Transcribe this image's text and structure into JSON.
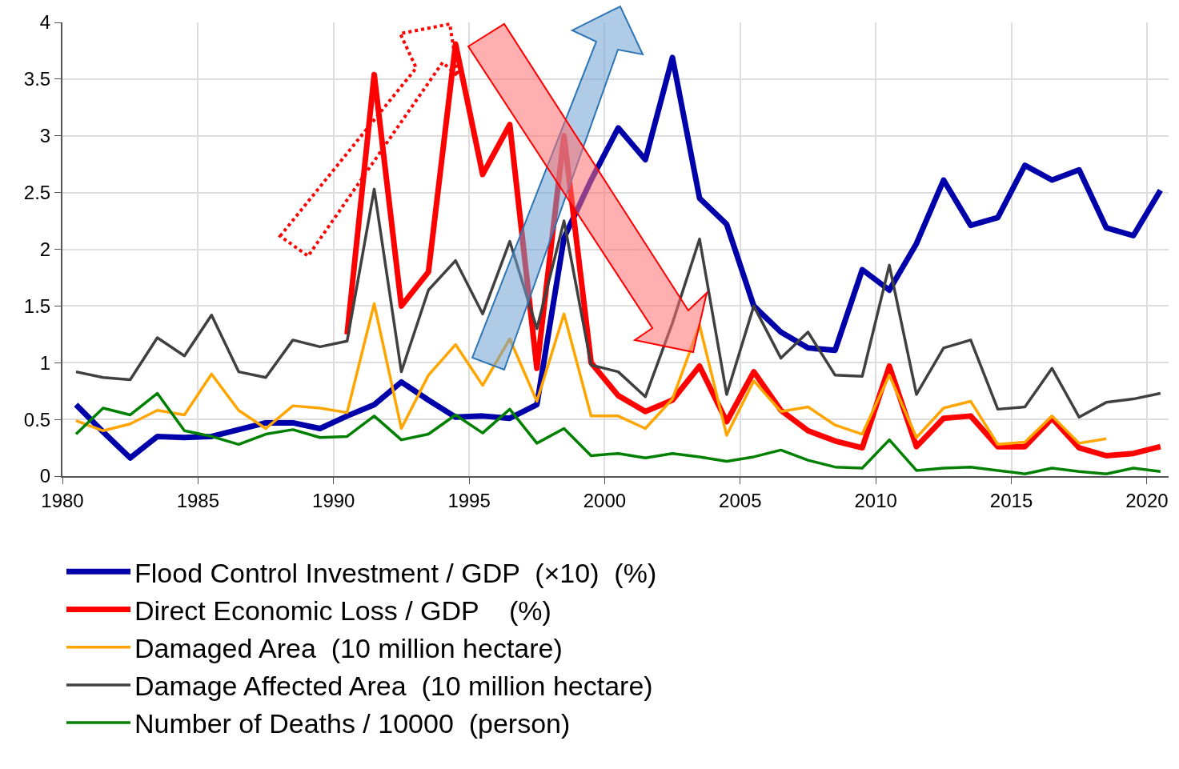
{
  "chart_data": {
    "type": "line",
    "x": [
      1980.5,
      1981.5,
      1982.5,
      1983.5,
      1984.5,
      1985.5,
      1986.5,
      1987.5,
      1988.5,
      1989.5,
      1990.5,
      1991.5,
      1992.5,
      1993.5,
      1994.5,
      1995.5,
      1996.5,
      1997.5,
      1998.5,
      1999.5,
      2000.5,
      2001.5,
      2002.5,
      2003.5,
      2004.5,
      2005.5,
      2006.5,
      2007.5,
      2008.5,
      2009.5,
      2010.5,
      2011.5,
      2012.5,
      2013.5,
      2014.5,
      2015.5,
      2016.5,
      2017.5,
      2018.5,
      2019.5,
      2020.5
    ],
    "series": [
      {
        "name": "Flood Control Investment / GDP  (×10)  (%)",
        "color": "#0000aa",
        "values": [
          0.63,
          0.39,
          0.16,
          0.35,
          0.34,
          0.35,
          0.41,
          0.47,
          0.47,
          0.42,
          0.53,
          0.63,
          0.83,
          0.67,
          0.52,
          0.53,
          0.51,
          0.63,
          2.1,
          2.61,
          3.07,
          2.79,
          3.69,
          2.45,
          2.22,
          1.5,
          1.27,
          1.13,
          1.11,
          1.82,
          1.64,
          2.05,
          2.61,
          2.21,
          2.28,
          2.74,
          2.61,
          2.7,
          2.19,
          2.12,
          2.52
        ]
      },
      {
        "name": "Direct Economic Loss / GDP    (%)",
        "color": "#ff0000",
        "values": [
          null,
          null,
          null,
          null,
          null,
          null,
          null,
          null,
          null,
          null,
          1.25,
          3.54,
          1.5,
          1.8,
          3.81,
          2.66,
          3.1,
          0.95,
          3.0,
          1.0,
          0.71,
          0.57,
          0.67,
          0.97,
          0.48,
          0.92,
          0.58,
          0.4,
          0.31,
          0.25,
          0.97,
          0.26,
          0.51,
          0.53,
          0.26,
          0.26,
          0.51,
          0.25,
          0.18,
          0.2,
          0.26
        ]
      },
      {
        "name": "Damaged Area  (10 million hectare)",
        "color": "#ffa500",
        "values": [
          0.49,
          0.4,
          0.46,
          0.58,
          0.54,
          0.9,
          0.58,
          0.42,
          0.62,
          0.6,
          0.56,
          1.52,
          0.42,
          0.89,
          1.16,
          0.8,
          1.21,
          0.66,
          1.43,
          0.53,
          0.53,
          0.42,
          0.68,
          1.33,
          0.36,
          0.84,
          0.57,
          0.61,
          0.45,
          0.37,
          0.89,
          0.34,
          0.6,
          0.66,
          0.28,
          0.3,
          0.53,
          0.29,
          0.33,
          null,
          null
        ]
      },
      {
        "name": "Damage Affected Area  (10 million hectare)",
        "color": "#404040",
        "values": [
          0.92,
          0.87,
          0.85,
          1.22,
          1.06,
          1.42,
          0.92,
          0.87,
          1.2,
          1.14,
          1.19,
          2.53,
          0.92,
          1.64,
          1.9,
          1.43,
          2.07,
          1.3,
          2.25,
          0.98,
          0.92,
          0.7,
          1.35,
          2.09,
          0.72,
          1.5,
          1.04,
          1.27,
          0.89,
          0.88,
          1.86,
          0.72,
          1.13,
          1.2,
          0.59,
          0.61,
          0.95,
          0.52,
          0.65,
          0.68,
          0.73
        ]
      },
      {
        "name": "Number of Deaths / 10000  (person)",
        "color": "#008000",
        "values": [
          0.37,
          0.6,
          0.54,
          0.73,
          0.4,
          0.35,
          0.28,
          0.37,
          0.41,
          0.34,
          0.35,
          0.53,
          0.32,
          0.37,
          0.54,
          0.38,
          0.59,
          0.29,
          0.42,
          0.18,
          0.2,
          0.16,
          0.2,
          0.17,
          0.13,
          0.17,
          0.23,
          0.14,
          0.08,
          0.07,
          0.32,
          0.05,
          0.07,
          0.08,
          0.05,
          0.02,
          0.07,
          0.04,
          0.02,
          0.07,
          0.04
        ]
      }
    ],
    "xlim": [
      1980,
      2020.8
    ],
    "xticks": [
      1980,
      1985,
      1990,
      1995,
      2000,
      2005,
      2010,
      2015,
      2020
    ],
    "ylim": [
      0,
      4
    ],
    "yticks": [
      0,
      0.5,
      1,
      1.5,
      2,
      2.5,
      3,
      3.5,
      4
    ],
    "grid": true,
    "legend": "bottom",
    "marker": "none",
    "line_style": "solid"
  }
}
